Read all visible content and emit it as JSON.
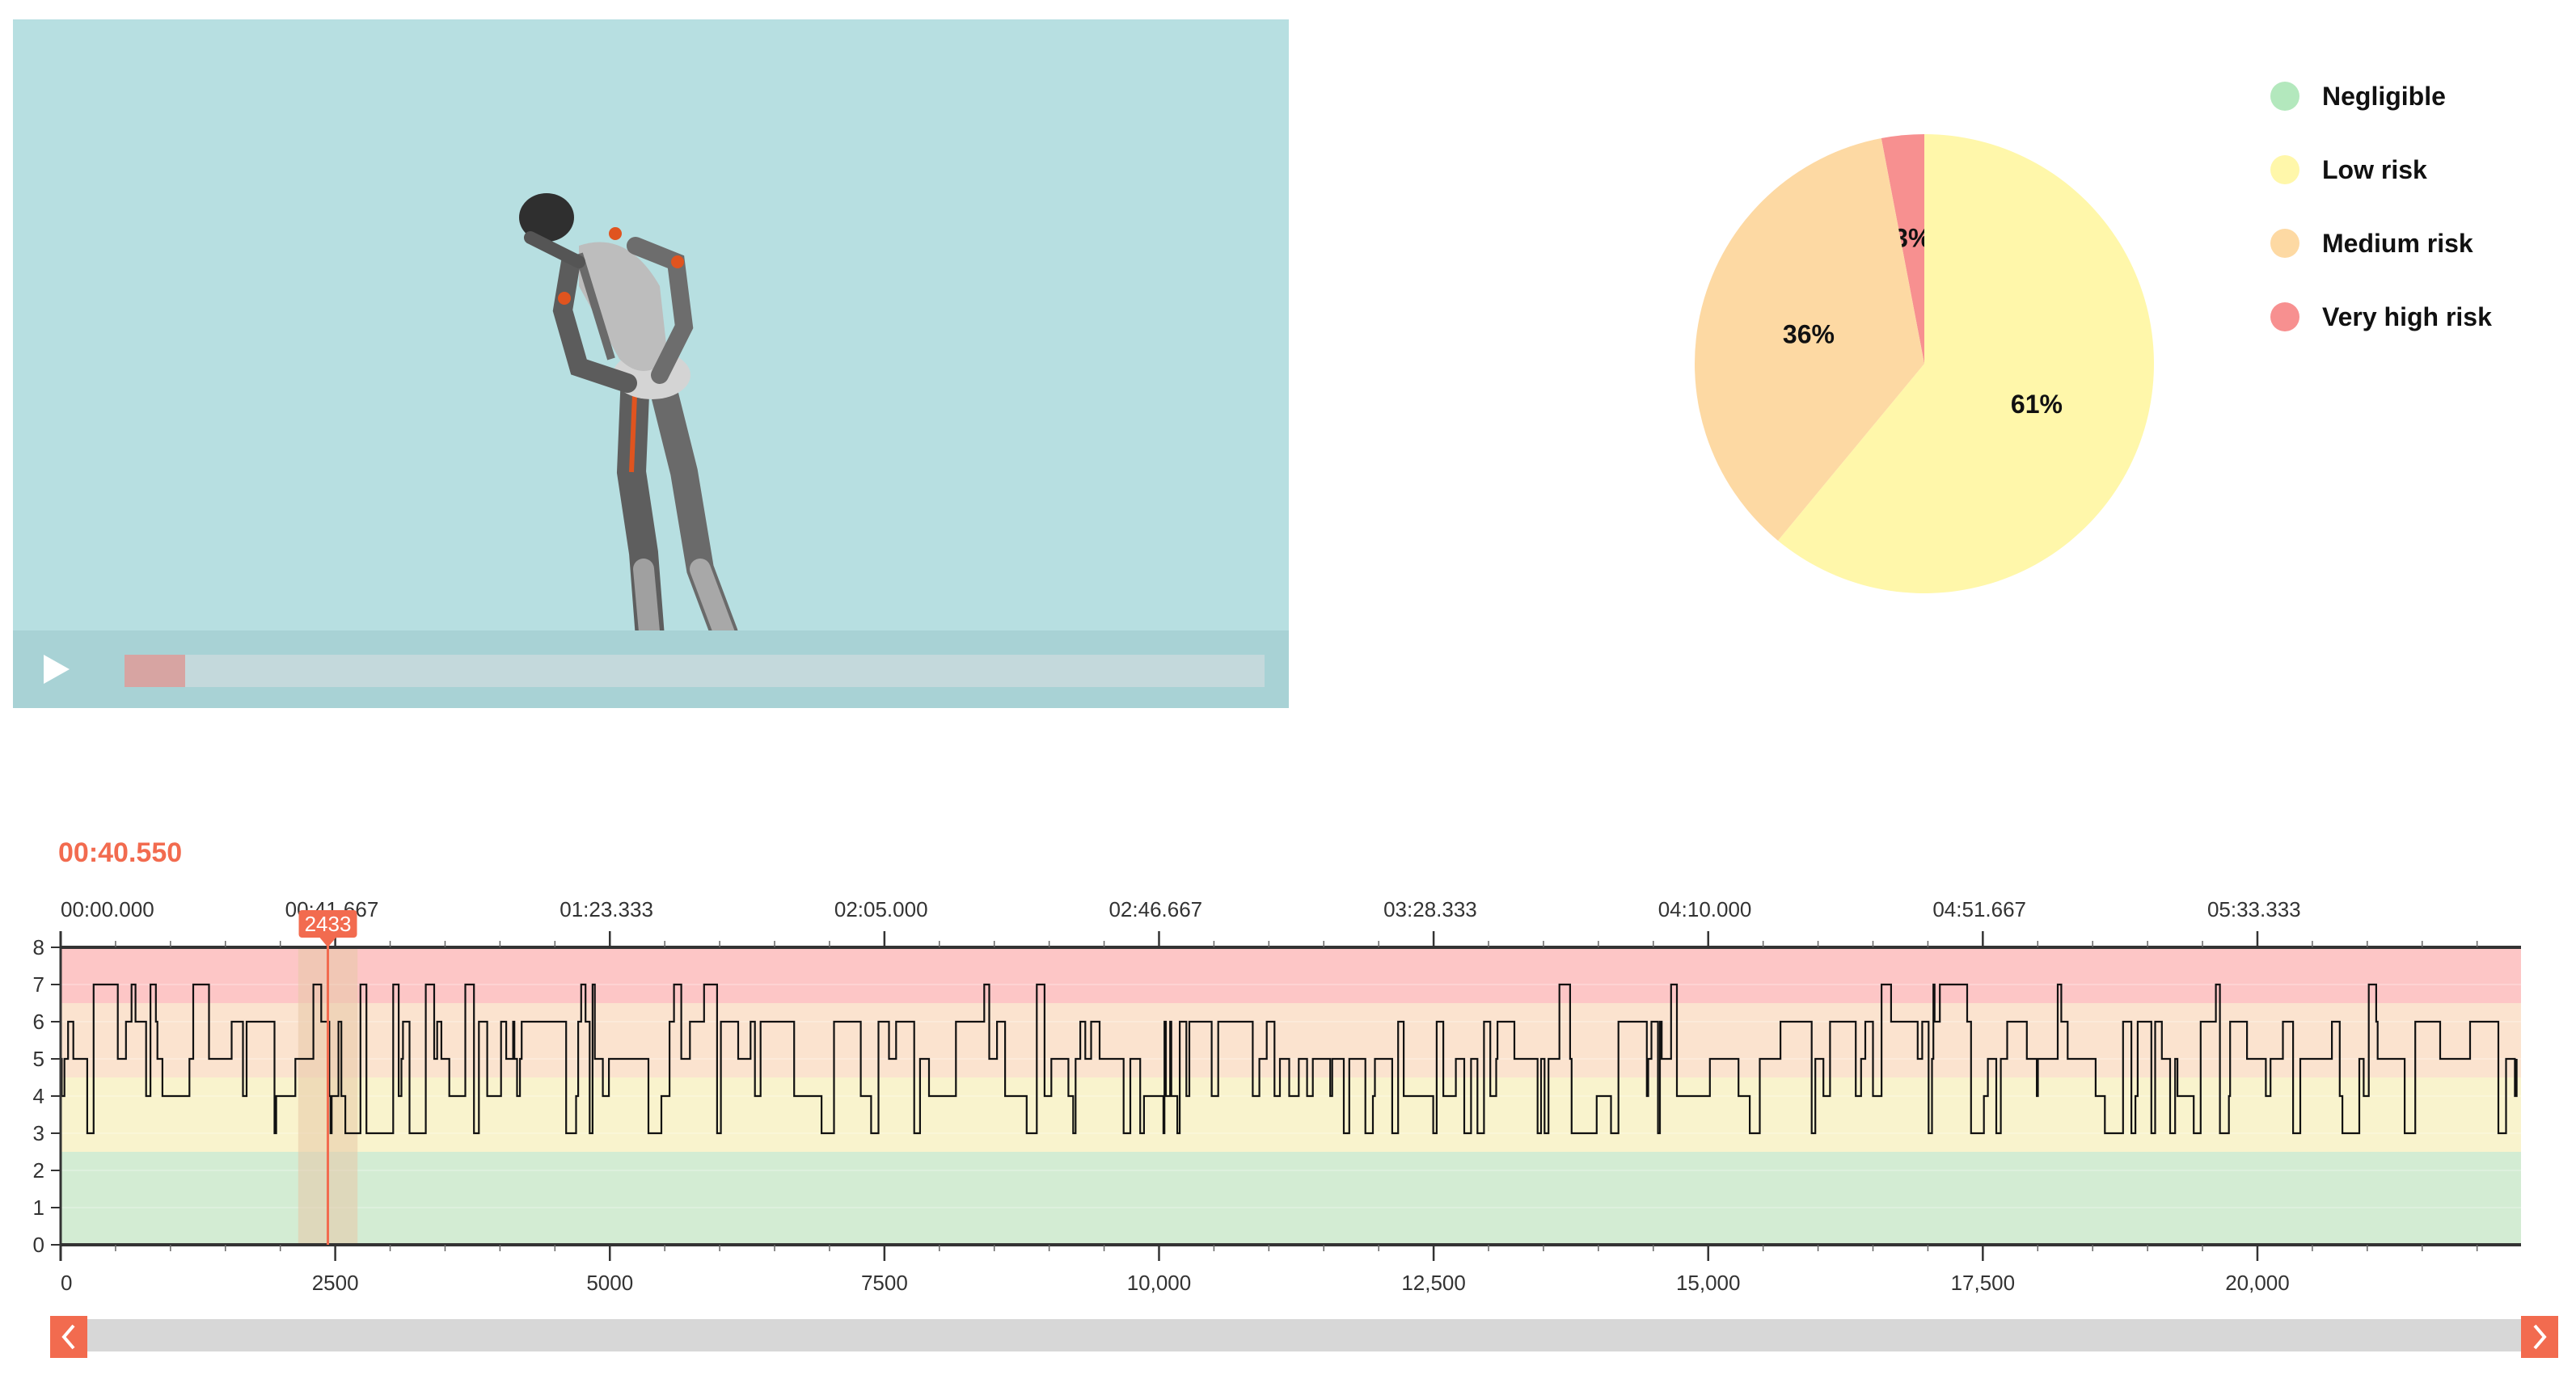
{
  "video": {
    "progress": 0.053
  },
  "pie": {
    "slices": [
      {
        "name": "Very high risk",
        "value": 3,
        "label": "3%",
        "color": "#f79090"
      },
      {
        "name": "Low risk",
        "value": 61,
        "label": "61%",
        "color": "#fff7aa"
      },
      {
        "name": "Medium risk",
        "value": 36,
        "label": "36%",
        "color": "#fdd9a3"
      }
    ]
  },
  "legend": {
    "items": [
      {
        "label": "Negligible",
        "color": "#b3e8bd"
      },
      {
        "label": "Low risk",
        "color": "#fff7aa"
      },
      {
        "label": "Medium risk",
        "color": "#fdd9a3"
      },
      {
        "label": "Very high risk",
        "color": "#f79090"
      }
    ]
  },
  "timeline": {
    "current_time": "00:40.550",
    "cursor_frame": 2433,
    "cursor_label": "2433",
    "time_ticks": [
      {
        "frame": 0,
        "label": "00:00.000"
      },
      {
        "frame": 2500,
        "label": "00:41.667"
      },
      {
        "frame": 5000,
        "label": "01:23.333"
      },
      {
        "frame": 7500,
        "label": "02:05.000"
      },
      {
        "frame": 10000,
        "label": "02:46.667"
      },
      {
        "frame": 12500,
        "label": "03:28.333"
      },
      {
        "frame": 15000,
        "label": "04:10.000"
      },
      {
        "frame": 17500,
        "label": "04:51.667"
      },
      {
        "frame": 20000,
        "label": "05:33.333"
      }
    ],
    "frame_ticks": [
      {
        "frame": 0,
        "label": "0"
      },
      {
        "frame": 2500,
        "label": "2500"
      },
      {
        "frame": 5000,
        "label": "5000"
      },
      {
        "frame": 7500,
        "label": "7500"
      },
      {
        "frame": 10000,
        "label": "10,000"
      },
      {
        "frame": 12500,
        "label": "12,500"
      },
      {
        "frame": 15000,
        "label": "15,000"
      },
      {
        "frame": 17500,
        "label": "17,500"
      },
      {
        "frame": 20000,
        "label": "20,000"
      }
    ],
    "y_ticks": [
      "0",
      "1",
      "2",
      "3",
      "4",
      "5",
      "6",
      "7",
      "8"
    ],
    "x_range": [
      0,
      22400
    ],
    "y_range": [
      0,
      8
    ],
    "bands": [
      {
        "from": 0,
        "to": 2.5,
        "color": "#d3ecd3"
      },
      {
        "from": 2.5,
        "to": 4.5,
        "color": "#f9f3cd"
      },
      {
        "from": 4.5,
        "to": 6.5,
        "color": "#fbe3cf"
      },
      {
        "from": 6.5,
        "to": 8,
        "color": "#fdc6c6"
      }
    ]
  },
  "chart_data": {
    "type": "pie",
    "categories": [
      "Very high risk",
      "Low risk",
      "Medium risk"
    ],
    "values": [
      3,
      61,
      36
    ],
    "legend": [
      "Negligible",
      "Low risk",
      "Medium risk",
      "Very high risk"
    ]
  }
}
